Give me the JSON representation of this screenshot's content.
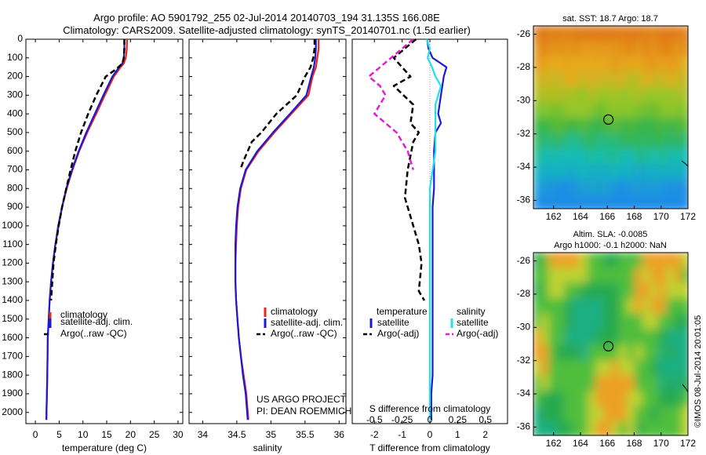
{
  "header": {
    "line1": "Argo profile: AO 5901792_255 02-Jul-2014 20140703_194 31.135S 166.08E",
    "line2": "Climatology: CARS2009. Satellite-adjusted climatology: synTS_20140701.nc (1.5d earlier)"
  },
  "colors": {
    "climatology": "#e8261c",
    "satellite": "#1a1ad6",
    "argo": "#000000",
    "salinity_satellite": "#22e0e6",
    "salinity_argo": "#e020d0"
  },
  "chart_data": [
    {
      "type": "line",
      "xlabel": "temperature (deg C)",
      "xlim": [
        -2,
        31
      ],
      "xticks": [
        "0",
        "5",
        "10",
        "15",
        "20",
        "25",
        "30"
      ],
      "ylim": [
        2060,
        0
      ],
      "yticks": [
        "0",
        "100",
        "200",
        "300",
        "400",
        "500",
        "600",
        "700",
        "800",
        "900",
        "1000",
        "1100",
        "1200",
        "1300",
        "1400",
        "1500",
        "1600",
        "1700",
        "1800",
        "1900",
        "2000"
      ],
      "legend": [
        "climatology",
        "satellite-adj. clim.",
        "Argo(..raw -QC)"
      ],
      "series": [
        {
          "name": "climatology",
          "style": "solid",
          "x": [
            19.3,
            19.2,
            19.0,
            18.6,
            17.9,
            16.5,
            14.6,
            12.8,
            10.9,
            9.2,
            7.8,
            6.6,
            5.6,
            4.9,
            4.2,
            3.7,
            3.3,
            3.0,
            2.8,
            2.6,
            2.5,
            2.3
          ],
          "y": [
            0,
            60,
            100,
            130,
            150,
            200,
            300,
            400,
            500,
            600,
            700,
            800,
            900,
            1000,
            1100,
            1200,
            1300,
            1400,
            1500,
            1600,
            1800,
            2040
          ]
        },
        {
          "name": "satellite-adj. clim.",
          "style": "solid",
          "x": [
            18.7,
            18.7,
            18.6,
            18.3,
            17.6,
            16.2,
            14.3,
            12.5,
            10.7,
            9.1,
            7.7,
            6.5,
            5.6,
            4.8,
            4.2,
            3.7,
            3.3,
            3.0,
            2.8,
            2.6,
            2.5,
            2.3
          ],
          "y": [
            0,
            60,
            100,
            130,
            150,
            200,
            300,
            400,
            500,
            600,
            700,
            800,
            900,
            1000,
            1100,
            1200,
            1300,
            1400,
            1500,
            1600,
            1800,
            2040
          ]
        },
        {
          "name": "Argo(..raw -QC)",
          "style": "dash",
          "x": [
            18.7,
            18.7,
            18.6,
            18.3,
            17.0,
            14.8,
            12.8,
            11.1,
            9.6,
            8.4,
            7.4,
            6.5,
            5.6,
            4.9,
            4.3,
            3.8,
            3.3
          ],
          "y": [
            0,
            50,
            100,
            130,
            160,
            200,
            300,
            400,
            500,
            600,
            700,
            800,
            900,
            1000,
            1100,
            1200,
            1400
          ]
        }
      ]
    },
    {
      "type": "line",
      "xlabel": "salinity",
      "xlim": [
        33.8,
        36.1
      ],
      "xticks": [
        "34",
        "34.5",
        "35",
        "35.5",
        "36"
      ],
      "ylim": [
        2060,
        0
      ],
      "legend": [
        "climatology",
        "satellite-adj. clim.",
        "Argo(..raw -QC)"
      ],
      "annotation": [
        "US ARGO PROJECT",
        "PI: DEAN ROEMMICH"
      ],
      "series": [
        {
          "name": "climatology",
          "style": "solid",
          "x": [
            35.7,
            35.7,
            35.68,
            35.66,
            35.61,
            35.55,
            35.3,
            35.05,
            34.82,
            34.64,
            34.56,
            34.52,
            34.5,
            34.49,
            34.48,
            34.48,
            34.49,
            34.51,
            34.53,
            34.56,
            34.6,
            34.64,
            34.67
          ],
          "y": [
            0,
            50,
            100,
            150,
            200,
            300,
            400,
            500,
            600,
            700,
            800,
            900,
            1000,
            1100,
            1200,
            1300,
            1400,
            1500,
            1600,
            1700,
            1800,
            1900,
            2040
          ]
        },
        {
          "name": "satellite-adj. clim.",
          "style": "solid",
          "x": [
            35.66,
            35.66,
            35.65,
            35.63,
            35.59,
            35.52,
            35.28,
            35.03,
            34.8,
            34.63,
            34.55,
            34.51,
            34.49,
            34.48,
            34.48,
            34.48,
            34.49,
            34.51,
            34.53,
            34.56,
            34.59,
            34.63,
            34.66
          ],
          "y": [
            0,
            50,
            100,
            150,
            200,
            300,
            400,
            500,
            600,
            700,
            800,
            900,
            1000,
            1100,
            1200,
            1300,
            1400,
            1500,
            1600,
            1700,
            1800,
            1900,
            2040
          ]
        },
        {
          "name": "Argo(..raw -QC)",
          "style": "dash",
          "x": [
            35.64,
            35.64,
            35.62,
            35.58,
            35.5,
            35.38,
            35.08,
            34.86,
            34.72,
            34.6,
            34.55
          ],
          "y": [
            0,
            50,
            100,
            150,
            200,
            300,
            400,
            500,
            550,
            650,
            700
          ]
        }
      ]
    },
    {
      "type": "line",
      "xlabel": "T difference from climatology",
      "xlabel2": "S difference from climatology",
      "xlim": [
        -2.8,
        2.8
      ],
      "xticks": [
        "-2",
        "-1",
        "0",
        "1",
        "2"
      ],
      "xticks2": [
        "-0.5",
        "-0.25",
        "0",
        "0.25",
        "0.5"
      ],
      "ylim": [
        2060,
        0
      ],
      "legend_headers": [
        "temperature",
        "salinity"
      ],
      "legend": [
        "satellite",
        "Argo(-adj)",
        "satellite",
        "Argo(-adj)"
      ],
      "series": [
        {
          "name": "temperature satellite",
          "style": "solid",
          "x": [
            -0.1,
            -0.05,
            0.1,
            0.3,
            0.6,
            0.5,
            0.4,
            0.3,
            0.4,
            0.2,
            0.15,
            0.15,
            0.15,
            0.1,
            0.1,
            0.1,
            0.1,
            0.1,
            0.1,
            0.05,
            0.05,
            0.05
          ],
          "y": [
            0,
            50,
            100,
            120,
            150,
            200,
            300,
            400,
            450,
            500,
            600,
            700,
            800,
            900,
            1000,
            1200,
            1400,
            1600,
            1800,
            1900,
            2000,
            2040
          ]
        },
        {
          "name": "temperature Argo(-adj)",
          "style": "dash",
          "x": [
            -0.5,
            -1.3,
            -1.0,
            -0.7,
            -1.3,
            -0.6,
            -0.7,
            -0.4,
            -0.6,
            -0.8,
            -0.9,
            -0.7,
            -0.4,
            -0.3,
            -0.4,
            -0.2
          ],
          "y": [
            0,
            100,
            150,
            200,
            250,
            350,
            450,
            500,
            550,
            700,
            850,
            950,
            1100,
            1200,
            1350,
            1400
          ]
        },
        {
          "name": "salinity satellite",
          "style": "solid",
          "x": [
            -0.03,
            0.0,
            -0.02,
            0.02,
            0.05,
            0.1,
            0.05,
            0.05,
            0.05,
            0.0,
            0.0,
            0.0,
            0.0,
            0.0,
            0.0
          ],
          "y": [
            0,
            50,
            100,
            150,
            200,
            250,
            350,
            500,
            600,
            800,
            1000,
            1400,
            1700,
            1900,
            2040
          ]
        },
        {
          "name": "salinity Argo(-adj)",
          "style": "dash",
          "x": [
            -0.15,
            -0.35,
            -0.55,
            -0.45,
            -0.4,
            -0.5,
            -0.3,
            -0.25,
            -0.2,
            -0.15
          ],
          "y": [
            0,
            100,
            200,
            250,
            300,
            400,
            500,
            550,
            600,
            700
          ]
        }
      ]
    },
    {
      "type": "heatmap",
      "title": "sat. SST: 18.7 Argo: 18.7",
      "xticks": [
        "162",
        "164",
        "166",
        "168",
        "170",
        "172"
      ],
      "yticks": [
        "-26",
        "-28",
        "-30",
        "-32",
        "-34",
        "-36"
      ],
      "xlim": [
        160.5,
        172
      ],
      "ylim": [
        -36.5,
        -25.5
      ],
      "marker": {
        "lon": 166.08,
        "lat": -31.135
      }
    },
    {
      "type": "heatmap",
      "title": "Altim. SLA: -0.0085",
      "subtitle": "Argo h1000: -0.1 h2000: NaN",
      "xticks": [
        "162",
        "164",
        "166",
        "168",
        "170",
        "172"
      ],
      "yticks": [
        "-26",
        "-28",
        "-30",
        "-32",
        "-34",
        "-36"
      ],
      "xlim": [
        160.5,
        172
      ],
      "ylim": [
        -36.5,
        -25.5
      ],
      "marker": {
        "lon": 166.08,
        "lat": -31.135
      }
    }
  ],
  "watermark": "©IMOS 08-Jul-2014 20:01:05"
}
